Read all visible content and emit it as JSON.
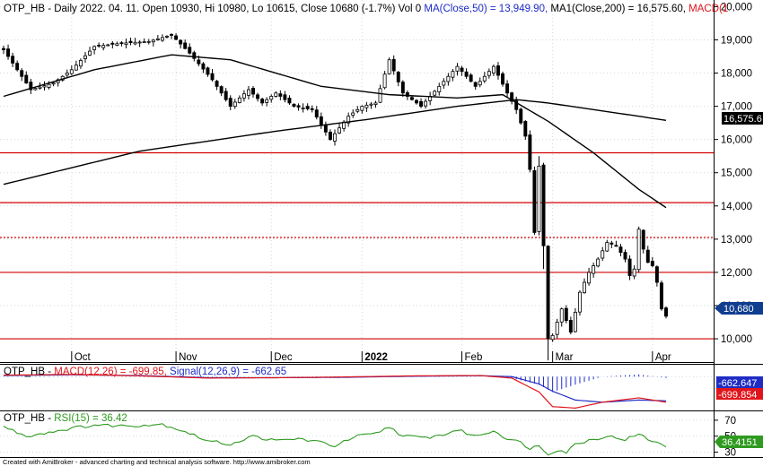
{
  "colors": {
    "background": "#ffffff",
    "grid": "#cfd8e3",
    "frame": "#000000",
    "candle": "#000000",
    "level_line": "#d20000",
    "ma_line": "#000000",
    "macd_line": "#e0151b",
    "signal_line": "#1f2cc4",
    "histogram": "#1f2cc4",
    "rsi_line": "#2f9a20",
    "macd_tag_bg": "#1f2cc4",
    "macd_tag_bg2": "#e0151b",
    "rsi_tag_bg": "#2f9a20",
    "label_bg": "#000000",
    "value_tag_bg": "#0f3d8f"
  },
  "header": {
    "main_prefix": "OTP_HB - Daily 2022. 04. 11. Open 10930, Hi 10980, Lo 10615, Close 10680 (-1.7%) Vol 0",
    "ma50_text": "MA(Close,50) = 13,949.90,",
    "ma200_text": "MA1(Close,200) = 16,575.60,",
    "macd_cut_text": "MACD(1"
  },
  "macd_header": {
    "prefix": "OTP_HB - ",
    "macd_text": "MACD(12,26) = -699.85,",
    "signal_text": "Signal(12,26,9) = -662.65"
  },
  "rsi_header": {
    "prefix": "OTP_HB - ",
    "rsi_text": "RSI(15) = 36.42"
  },
  "price_axis": {
    "ticks": [
      {
        "value": 10000,
        "label": "10,000"
      },
      {
        "value": 11000,
        "label": "11,000"
      },
      {
        "value": 12000,
        "label": "12,000"
      },
      {
        "value": 13000,
        "label": "13,000"
      },
      {
        "value": 14000,
        "label": "14,000"
      },
      {
        "value": 15000,
        "label": "15,000"
      },
      {
        "value": 16000,
        "label": "16,000"
      },
      {
        "value": 17000,
        "label": "17,000"
      },
      {
        "value": 18000,
        "label": "18,000"
      },
      {
        "value": 19000,
        "label": "19,000"
      },
      {
        "value": 20000,
        "label": "20,000"
      }
    ],
    "ylim": [
      9300,
      20200
    ],
    "ma200_tag": "16,575.6",
    "close_tag": "10,680"
  },
  "macd_axis": {
    "ylim": [
      -900,
      300
    ],
    "macd_tag": "-699.854",
    "signal_tag": "-662.647"
  },
  "rsi_axis": {
    "ylim": [
      25,
      80
    ],
    "ticks": [
      {
        "value": 70,
        "label": "70"
      },
      {
        "value": 50,
        "label": "50"
      },
      {
        "value": 30,
        "label": "30"
      }
    ],
    "rsi_tag": "36.4151"
  },
  "time_axis": {
    "labels": [
      {
        "idx": 15,
        "label": "Oct"
      },
      {
        "idx": 38,
        "label": "Nov"
      },
      {
        "idx": 59,
        "label": "Dec"
      },
      {
        "idx": 79,
        "label": "2022"
      },
      {
        "idx": 101,
        "label": "Feb"
      },
      {
        "idx": 121,
        "label": "Mar"
      },
      {
        "idx": 143,
        "label": "Apr"
      }
    ]
  },
  "footer_text": "Created with AmiBroker - advanced charting and technical analysis software. http://www.amibroker.com",
  "chart_data": {
    "type": "candlestick",
    "x_start": "2021-09-13",
    "x_end": "2022-04-11",
    "n_bars": 147,
    "horizontal_levels": [
      10000,
      12000,
      13050,
      14100,
      15600
    ],
    "key_points": [
      {
        "idx": 0,
        "close": 18700
      },
      {
        "idx": 6,
        "close": 17500
      },
      {
        "idx": 11,
        "close": 17700
      },
      {
        "idx": 15,
        "close": 18100
      },
      {
        "idx": 20,
        "close": 18800
      },
      {
        "idx": 26,
        "close": 18900
      },
      {
        "idx": 32,
        "close": 18950
      },
      {
        "idx": 37,
        "close": 19150
      },
      {
        "idx": 41,
        "close": 18600
      },
      {
        "idx": 46,
        "close": 17800
      },
      {
        "idx": 50,
        "close": 17000
      },
      {
        "idx": 54,
        "close": 17500
      },
      {
        "idx": 57,
        "close": 17100
      },
      {
        "idx": 60,
        "close": 17400
      },
      {
        "idx": 64,
        "close": 17000
      },
      {
        "idx": 68,
        "close": 16900
      },
      {
        "idx": 72,
        "close": 16000
      },
      {
        "idx": 76,
        "close": 16700
      },
      {
        "idx": 79,
        "close": 17000
      },
      {
        "idx": 82,
        "close": 17100
      },
      {
        "idx": 85,
        "close": 18400
      },
      {
        "idx": 88,
        "close": 17400
      },
      {
        "idx": 92,
        "close": 17000
      },
      {
        "idx": 96,
        "close": 17600
      },
      {
        "idx": 100,
        "close": 18200
      },
      {
        "idx": 104,
        "close": 17600
      },
      {
        "idx": 108,
        "close": 18200
      },
      {
        "idx": 111,
        "close": 17400
      },
      {
        "idx": 113,
        "close": 16900
      },
      {
        "idx": 115,
        "close": 16100
      },
      {
        "idx": 116,
        "close": 15100
      },
      {
        "idx": 117,
        "close": 13200
      },
      {
        "idx": 118,
        "close": 15200
      },
      {
        "idx": 119,
        "close": 12800
      },
      {
        "idx": 120,
        "close": 10000
      },
      {
        "idx": 121,
        "close": 10100
      },
      {
        "idx": 123,
        "close": 10900
      },
      {
        "idx": 125,
        "close": 10200
      },
      {
        "idx": 127,
        "close": 11400
      },
      {
        "idx": 129,
        "close": 12000
      },
      {
        "idx": 131,
        "close": 12400
      },
      {
        "idx": 133,
        "close": 12900
      },
      {
        "idx": 135,
        "close": 12800
      },
      {
        "idx": 137,
        "close": 12400
      },
      {
        "idx": 138,
        "close": 11900
      },
      {
        "idx": 139,
        "close": 12100
      },
      {
        "idx": 140,
        "close": 13300
      },
      {
        "idx": 141,
        "close": 12700
      },
      {
        "idx": 142,
        "close": 12300
      },
      {
        "idx": 143,
        "close": 12200
      },
      {
        "idx": 144,
        "close": 11700
      },
      {
        "idx": 145,
        "close": 10900
      },
      {
        "idx": 146,
        "close": 10680
      }
    ],
    "ma50_points": [
      {
        "idx": 0,
        "value": 17300
      },
      {
        "idx": 20,
        "value": 18100
      },
      {
        "idx": 37,
        "value": 18550
      },
      {
        "idx": 50,
        "value": 18400
      },
      {
        "idx": 70,
        "value": 17600
      },
      {
        "idx": 85,
        "value": 17350
      },
      {
        "idx": 100,
        "value": 17250
      },
      {
        "idx": 110,
        "value": 17350
      },
      {
        "idx": 115,
        "value": 16950
      },
      {
        "idx": 120,
        "value": 16550
      },
      {
        "idx": 130,
        "value": 15600
      },
      {
        "idx": 140,
        "value": 14500
      },
      {
        "idx": 146,
        "value": 13950
      }
    ],
    "ma200_points": [
      {
        "idx": 0,
        "value": 14650
      },
      {
        "idx": 30,
        "value": 15650
      },
      {
        "idx": 60,
        "value": 16250
      },
      {
        "idx": 80,
        "value": 16600
      },
      {
        "idx": 100,
        "value": 17000
      },
      {
        "idx": 113,
        "value": 17200
      },
      {
        "idx": 120,
        "value": 17100
      },
      {
        "idx": 130,
        "value": 16900
      },
      {
        "idx": 140,
        "value": 16700
      },
      {
        "idx": 146,
        "value": 16575.6
      }
    ],
    "macd_points": [
      {
        "idx": 0,
        "value": 40
      },
      {
        "idx": 15,
        "value": 60
      },
      {
        "idx": 30,
        "value": 20
      },
      {
        "idx": 45,
        "value": -40
      },
      {
        "idx": 60,
        "value": -30
      },
      {
        "idx": 75,
        "value": -10
      },
      {
        "idx": 90,
        "value": 20
      },
      {
        "idx": 105,
        "value": 30
      },
      {
        "idx": 112,
        "value": -40
      },
      {
        "idx": 118,
        "value": -420
      },
      {
        "idx": 121,
        "value": -820
      },
      {
        "idx": 126,
        "value": -860
      },
      {
        "idx": 132,
        "value": -700
      },
      {
        "idx": 140,
        "value": -580
      },
      {
        "idx": 146,
        "value": -699.85
      }
    ],
    "signal_points": [
      {
        "idx": 0,
        "value": 30
      },
      {
        "idx": 15,
        "value": 50
      },
      {
        "idx": 30,
        "value": 30
      },
      {
        "idx": 45,
        "value": -30
      },
      {
        "idx": 60,
        "value": -30
      },
      {
        "idx": 75,
        "value": -20
      },
      {
        "idx": 90,
        "value": 10
      },
      {
        "idx": 105,
        "value": 25
      },
      {
        "idx": 112,
        "value": 0
      },
      {
        "idx": 118,
        "value": -200
      },
      {
        "idx": 121,
        "value": -400
      },
      {
        "idx": 126,
        "value": -640
      },
      {
        "idx": 132,
        "value": -700
      },
      {
        "idx": 140,
        "value": -640
      },
      {
        "idx": 146,
        "value": -662.65
      }
    ],
    "rsi_points": [
      {
        "idx": 0,
        "value": 62
      },
      {
        "idx": 5,
        "value": 50
      },
      {
        "idx": 10,
        "value": 55
      },
      {
        "idx": 15,
        "value": 60
      },
      {
        "idx": 20,
        "value": 64
      },
      {
        "idx": 27,
        "value": 63
      },
      {
        "idx": 35,
        "value": 65
      },
      {
        "idx": 40,
        "value": 56
      },
      {
        "idx": 45,
        "value": 44
      },
      {
        "idx": 50,
        "value": 40
      },
      {
        "idx": 55,
        "value": 50
      },
      {
        "idx": 60,
        "value": 44
      },
      {
        "idx": 65,
        "value": 47
      },
      {
        "idx": 70,
        "value": 42
      },
      {
        "idx": 73,
        "value": 38
      },
      {
        "idx": 78,
        "value": 50
      },
      {
        "idx": 82,
        "value": 53
      },
      {
        "idx": 85,
        "value": 62
      },
      {
        "idx": 88,
        "value": 50
      },
      {
        "idx": 93,
        "value": 48
      },
      {
        "idx": 97,
        "value": 52
      },
      {
        "idx": 100,
        "value": 58
      },
      {
        "idx": 104,
        "value": 50
      },
      {
        "idx": 108,
        "value": 57
      },
      {
        "idx": 111,
        "value": 47
      },
      {
        "idx": 114,
        "value": 42
      },
      {
        "idx": 116,
        "value": 35
      },
      {
        "idx": 118,
        "value": 38
      },
      {
        "idx": 120,
        "value": 28
      },
      {
        "idx": 122,
        "value": 33
      },
      {
        "idx": 124,
        "value": 30
      },
      {
        "idx": 126,
        "value": 40
      },
      {
        "idx": 129,
        "value": 45
      },
      {
        "idx": 133,
        "value": 50
      },
      {
        "idx": 137,
        "value": 46
      },
      {
        "idx": 140,
        "value": 52
      },
      {
        "idx": 143,
        "value": 44
      },
      {
        "idx": 146,
        "value": 36.42
      }
    ]
  }
}
